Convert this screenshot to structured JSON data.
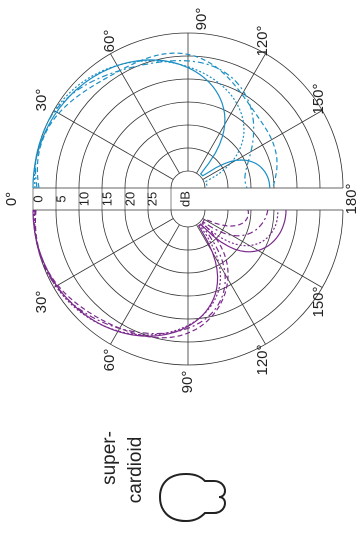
{
  "polar": {
    "angle_labels_top": [
      "0°",
      "30°",
      "60°",
      "90°",
      "120°",
      "150°",
      "180°"
    ],
    "angle_labels_bottom": [
      "30°",
      "60°",
      "90°",
      "120°",
      "150°"
    ],
    "ring_labels": [
      "0",
      "5",
      "10",
      "15",
      "20",
      "25"
    ],
    "unit_label": "dB",
    "top_color": "#1b8fc4",
    "bottom_color": "#7a2a8c"
  },
  "pattern": {
    "label_line1": "super-",
    "label_line2": "cardioid",
    "icon": "supercardioid-pattern-icon"
  }
}
